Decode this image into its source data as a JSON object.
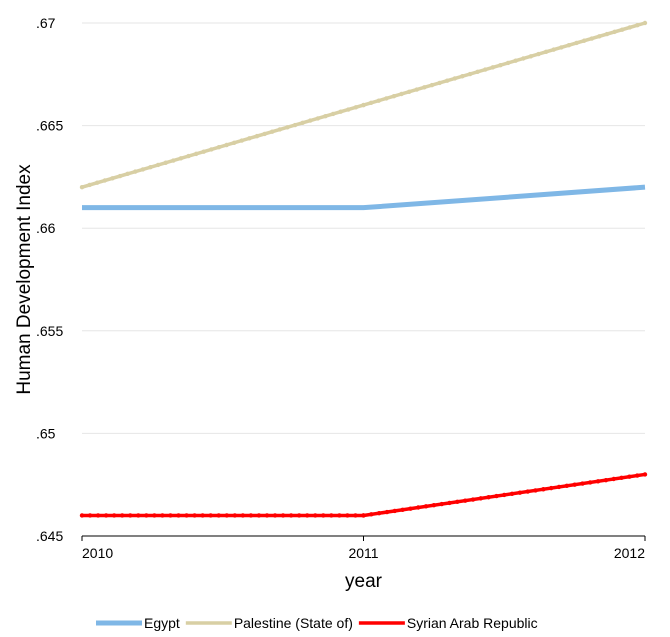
{
  "chart_data": {
    "type": "line",
    "title": "",
    "xlabel": "year",
    "ylabel": "Human Development Index",
    "x": [
      2010,
      2011,
      2012
    ],
    "xlim": [
      2010,
      2012
    ],
    "ylim": [
      0.645,
      0.67
    ],
    "x_ticks": [
      {
        "value": 2010,
        "label": "2010"
      },
      {
        "value": 2011,
        "label": "2011"
      },
      {
        "value": 2012,
        "label": "2012"
      }
    ],
    "y_ticks": [
      {
        "value": 0.645,
        "label": ".645"
      },
      {
        "value": 0.65,
        "label": ".65"
      },
      {
        "value": 0.655,
        "label": ".655"
      },
      {
        "value": 0.66,
        "label": ".66"
      },
      {
        "value": 0.665,
        "label": ".665"
      },
      {
        "value": 0.67,
        "label": ".67"
      }
    ],
    "grid": true,
    "legend_position": "bottom",
    "series": [
      {
        "name": "Egypt",
        "color": "#7fb7e6",
        "marker": "none",
        "values": [
          0.661,
          0.661,
          0.662
        ]
      },
      {
        "name": "Palestine (State of)",
        "color": "#d8cfa4",
        "marker": "dot",
        "values": [
          0.662,
          0.666,
          0.67
        ]
      },
      {
        "name": "Syrian Arab Republic",
        "color": "#ff0000",
        "marker": "dot",
        "values": [
          0.646,
          0.646,
          0.648
        ]
      }
    ]
  }
}
